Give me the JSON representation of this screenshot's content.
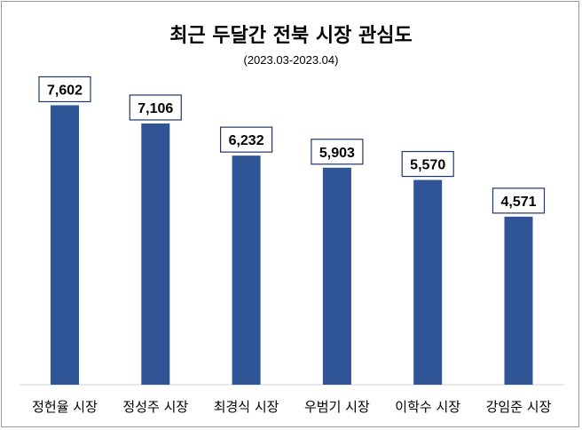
{
  "chart_data": {
    "type": "bar",
    "title": "최근 두달간 전북 시장 관심도",
    "subtitle": "(2023.03-2023.04)",
    "categories": [
      "정헌율 시장",
      "정성주 시장",
      "최경식 시장",
      "우범기 시장",
      "이학수 시장",
      "강임준 시장"
    ],
    "values": [
      7602,
      7106,
      6232,
      5903,
      5570,
      4571
    ],
    "value_labels": [
      "7,602",
      "7,106",
      "6,232",
      "5,903",
      "5,570",
      "4,571"
    ],
    "ylim": [
      0,
      8000
    ],
    "grid": false,
    "legend": "none",
    "bar_color": "#2f5597"
  }
}
